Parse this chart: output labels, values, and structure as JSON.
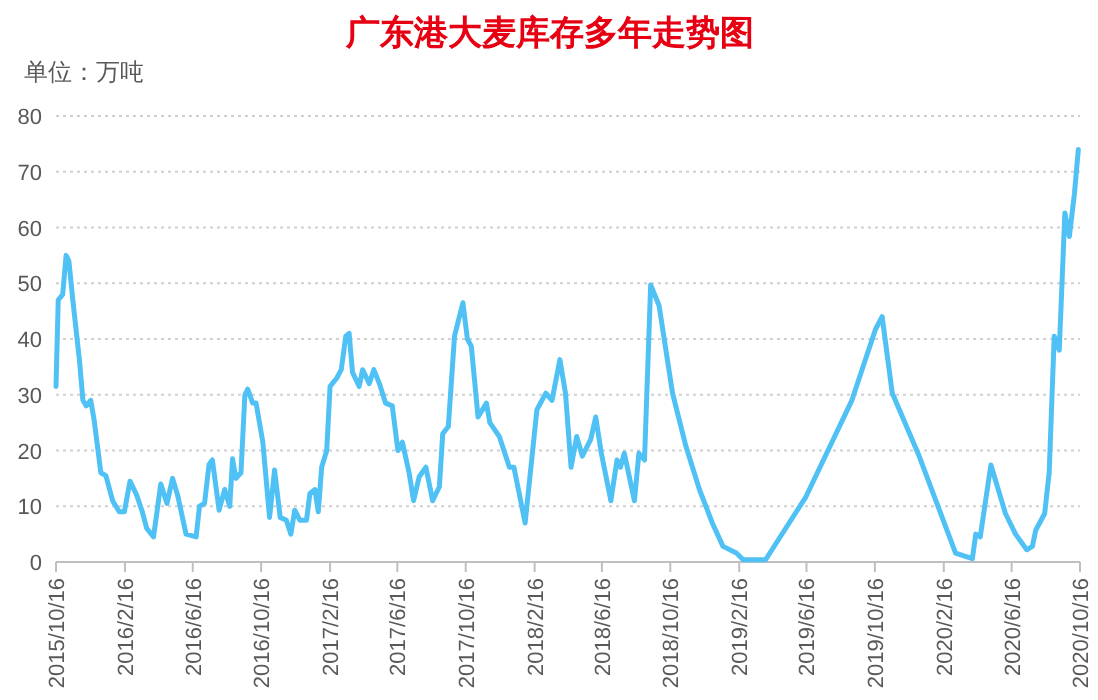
{
  "chart_data": {
    "type": "line",
    "title": "广东港大麦库存多年走势图",
    "ylabel": "单位：万吨",
    "series": [
      {
        "color": "#4fc1f5",
        "x": [
          "2015-10-16",
          "2015-10-20",
          "2015-10-28",
          "2015-11-03",
          "2015-11-08",
          "2015-11-15",
          "2015-11-27",
          "2015-12-03",
          "2015-12-09",
          "2015-12-17",
          "2015-12-23",
          "2016-01-04",
          "2016-01-13",
          "2016-01-25",
          "2016-02-06",
          "2016-02-15",
          "2016-02-25",
          "2016-03-08",
          "2016-03-18",
          "2016-03-26",
          "2016-04-07",
          "2016-04-20",
          "2016-05-01",
          "2016-05-11",
          "2016-05-20",
          "2016-06-04",
          "2016-06-22",
          "2016-06-28",
          "2016-07-07",
          "2016-07-15",
          "2016-07-21",
          "2016-08-02",
          "2016-08-12",
          "2016-08-21",
          "2016-08-26",
          "2016-09-01",
          "2016-09-10",
          "2016-09-17",
          "2016-09-22",
          "2016-10-01",
          "2016-10-07",
          "2016-10-19",
          "2016-10-31",
          "2016-11-09",
          "2016-11-19",
          "2016-11-30",
          "2016-12-08",
          "2016-12-15",
          "2016-12-24",
          "2017-01-05",
          "2017-01-11",
          "2017-01-20",
          "2017-01-26",
          "2017-02-01",
          "2017-02-10",
          "2017-02-16",
          "2017-02-28",
          "2017-03-08",
          "2017-03-16",
          "2017-03-22",
          "2017-03-28",
          "2017-04-09",
          "2017-04-15",
          "2017-04-27",
          "2017-05-05",
          "2017-05-15",
          "2017-05-26",
          "2017-06-07",
          "2017-06-17",
          "2017-06-25",
          "2017-07-07",
          "2017-07-15",
          "2017-07-25",
          "2017-08-06",
          "2017-08-18",
          "2017-08-30",
          "2017-09-05",
          "2017-09-15",
          "2017-09-26",
          "2017-10-11",
          "2017-10-19",
          "2017-10-26",
          "2017-11-07",
          "2017-11-22",
          "2017-11-28",
          "2017-12-15",
          "2018-01-02",
          "2018-01-10",
          "2018-01-30",
          "2018-02-20",
          "2018-03-08",
          "2018-03-19",
          "2018-04-02",
          "2018-04-12",
          "2018-04-22",
          "2018-05-02",
          "2018-05-12",
          "2018-05-27",
          "2018-06-05",
          "2018-06-15",
          "2018-07-02",
          "2018-07-13",
          "2018-07-19",
          "2018-07-26",
          "2018-08-13",
          "2018-08-21",
          "2018-08-31",
          "2018-09-11",
          "2018-09-26",
          "2018-10-20",
          "2018-11-13",
          "2018-12-07",
          "2018-12-30",
          "2019-01-18",
          "2019-02-11",
          "2019-02-23",
          "2019-04-04",
          "2019-06-15",
          "2019-09-05",
          "2019-10-17",
          "2019-10-29",
          "2019-11-16",
          "2020-01-03",
          "2020-03-08",
          "2020-04-07",
          "2020-04-13",
          "2020-04-21",
          "2020-05-10",
          "2020-06-05",
          "2020-06-23",
          "2020-07-13",
          "2020-07-23",
          "2020-07-29",
          "2020-08-14",
          "2020-08-22",
          "2020-08-31",
          "2020-09-09",
          "2020-09-19",
          "2020-09-27",
          "2020-10-06",
          "2020-10-13"
        ],
        "values": [
          31.5,
          47,
          48,
          55,
          54,
          47,
          36,
          29,
          28,
          29,
          25.5,
          16,
          15.5,
          11,
          9,
          9,
          14.5,
          12,
          9,
          6,
          4.5,
          14,
          10.5,
          15,
          12,
          5,
          4.5,
          10,
          10.5,
          17.5,
          18.3,
          9.3,
          13,
          10,
          18.5,
          15,
          16,
          30,
          31,
          28.5,
          28.5,
          21.5,
          8,
          16.5,
          8,
          7.5,
          5,
          9.3,
          7.5,
          7.5,
          12.3,
          13,
          9,
          17,
          20,
          31.5,
          33,
          34.5,
          40.5,
          41,
          34,
          31.5,
          34.5,
          32,
          34.5,
          32,
          28.5,
          28,
          20,
          21.5,
          16,
          11,
          15.3,
          17,
          11,
          13.5,
          23,
          24.3,
          40.5,
          46.5,
          40,
          38.7,
          26,
          28.5,
          25,
          22.5,
          17,
          17,
          7,
          27.3,
          30.3,
          29,
          36.3,
          30.3,
          17,
          22.5,
          19,
          22,
          26,
          19.5,
          11,
          18.3,
          17,
          19.5,
          11,
          19.5,
          18.3,
          49.7,
          46,
          30.3,
          20.7,
          13,
          7,
          2.8,
          1.6,
          0.4,
          0.4,
          11.7,
          29,
          41.7,
          44,
          30.3,
          19,
          1.6,
          0.6,
          5,
          4.5,
          17.4,
          8.7,
          5,
          2.2,
          2.8,
          5.7,
          8.7,
          16,
          40.5,
          38,
          62.6,
          58.4,
          66,
          74
        ]
      }
    ],
    "xlim": [
      "2015-10-16",
      "2020-10-16"
    ],
    "xticks": [
      {
        "value": "2015-10-16",
        "label": "2015/10/16"
      },
      {
        "value": "2016-02-16",
        "label": "2016/2/16"
      },
      {
        "value": "2016-06-16",
        "label": "2016/6/16"
      },
      {
        "value": "2016-10-16",
        "label": "2016/10/16"
      },
      {
        "value": "2017-02-16",
        "label": "2017/2/16"
      },
      {
        "value": "2017-06-16",
        "label": "2017/6/16"
      },
      {
        "value": "2017-10-16",
        "label": "2017/10/16"
      },
      {
        "value": "2018-02-16",
        "label": "2018/2/16"
      },
      {
        "value": "2018-06-16",
        "label": "2018/6/16"
      },
      {
        "value": "2018-10-16",
        "label": "2018/10/16"
      },
      {
        "value": "2019-02-16",
        "label": "2019/2/16"
      },
      {
        "value": "2019-06-16",
        "label": "2019/6/16"
      },
      {
        "value": "2019-10-16",
        "label": "2019/10/16"
      },
      {
        "value": "2020-02-16",
        "label": "2020/2/16"
      },
      {
        "value": "2020-06-16",
        "label": "2020/6/16"
      },
      {
        "value": "2020-10-16",
        "label": "2020/10/16"
      }
    ],
    "ylim": [
      0,
      80
    ],
    "yticks": [
      0,
      10,
      20,
      30,
      40,
      50,
      60,
      70,
      80
    ],
    "grid": "y",
    "marker": "none",
    "line_style": "solid"
  }
}
